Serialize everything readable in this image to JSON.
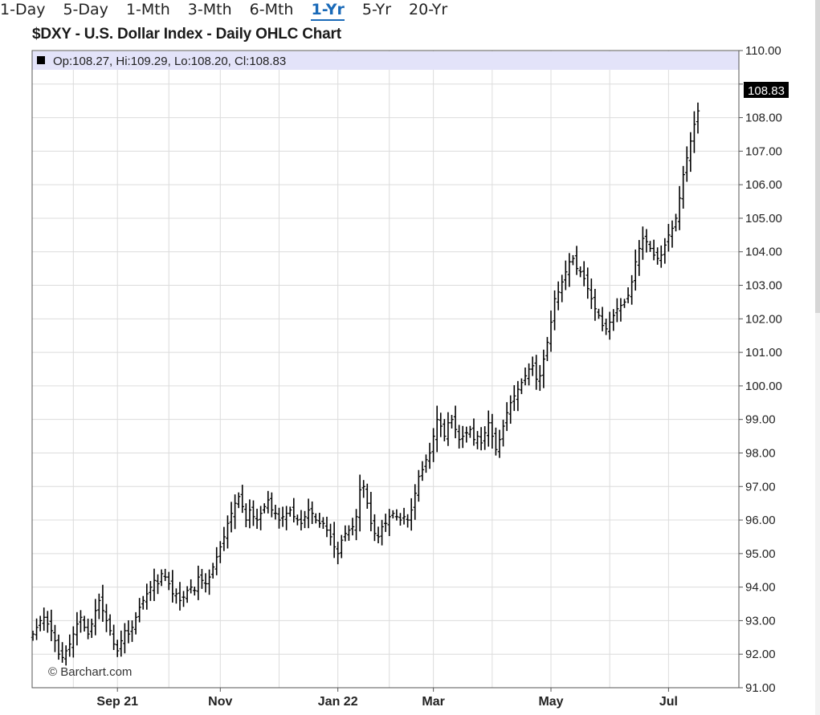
{
  "tabs": [
    {
      "label": "1-Day",
      "active": false
    },
    {
      "label": "5-Day",
      "active": false
    },
    {
      "label": "1-Mth",
      "active": false
    },
    {
      "label": "3-Mth",
      "active": false
    },
    {
      "label": "6-Mth",
      "active": false
    },
    {
      "label": "1-Yr",
      "active": true
    },
    {
      "label": "5-Yr",
      "active": false
    },
    {
      "label": "20-Yr",
      "active": false
    }
  ],
  "colors": {
    "accent": "#1a6ab8",
    "info_bar": "#e3e3f9",
    "bars": "#000000",
    "grid": "#d8d8d8"
  },
  "chart_data": {
    "type": "ohlc",
    "title": "$DXY - U.S. Dollar Index - Daily OHLC Chart",
    "info_bar": "Op:108.27, Hi:109.29, Lo:108.20, Cl:108.83",
    "last_price": "108.83",
    "watermark": "© Barchart.com",
    "ylim": [
      91,
      110
    ],
    "y_ticks": [
      "91.00",
      "92.00",
      "93.00",
      "94.00",
      "95.00",
      "96.00",
      "97.00",
      "98.00",
      "99.00",
      "100.00",
      "101.00",
      "102.00",
      "103.00",
      "104.00",
      "105.00",
      "106.00",
      "107.00",
      "108.00",
      "109.00",
      "110.00"
    ],
    "x_ticks": [
      {
        "label": "Sep 21",
        "index": 23
      },
      {
        "label": "Nov",
        "index": 51
      },
      {
        "label": "Jan 22",
        "index": 83
      },
      {
        "label": "Mar",
        "index": 109
      },
      {
        "label": "May",
        "index": 141
      },
      {
        "label": "Jul",
        "index": 173
      }
    ],
    "bar_count": 182,
    "closes": [
      92.6,
      92.8,
      93.0,
      93.1,
      92.9,
      92.7,
      92.4,
      92.0,
      91.9,
      92.1,
      92.3,
      92.6,
      92.9,
      93.1,
      92.8,
      92.6,
      92.9,
      93.3,
      93.6,
      93.3,
      93.0,
      92.7,
      92.3,
      92.1,
      92.4,
      92.7,
      92.6,
      92.8,
      93.1,
      93.4,
      93.6,
      93.8,
      94.0,
      94.2,
      94.1,
      94.4,
      94.3,
      94.1,
      93.8,
      93.8,
      93.6,
      93.7,
      93.9,
      94.0,
      93.9,
      94.3,
      94.2,
      94.1,
      94.3,
      94.6,
      94.9,
      95.2,
      95.5,
      95.9,
      96.2,
      96.5,
      96.7,
      96.4,
      96.0,
      96.3,
      96.1,
      96.0,
      96.2,
      96.4,
      96.6,
      96.3,
      96.2,
      96.0,
      96.1,
      96.2,
      96.3,
      96.1,
      96.0,
      95.9,
      96.1,
      96.3,
      96.2,
      96.0,
      95.9,
      95.9,
      95.7,
      95.5,
      95.2,
      95.0,
      95.4,
      95.6,
      95.7,
      95.8,
      96.1,
      96.9,
      97.0,
      96.5,
      95.9,
      95.6,
      95.5,
      95.8,
      95.9,
      96.1,
      96.2,
      96.1,
      96.0,
      96.1,
      96.0,
      96.3,
      96.8,
      97.3,
      97.5,
      97.8,
      98.0,
      98.5,
      99.0,
      98.8,
      98.5,
      98.9,
      99.0,
      98.7,
      98.4,
      98.5,
      98.6,
      98.7,
      98.4,
      98.5,
      98.3,
      98.6,
      98.9,
      98.5,
      98.1,
      98.4,
      98.8,
      99.2,
      99.5,
      99.7,
      99.9,
      100.1,
      100.3,
      100.5,
      100.6,
      100.2,
      100.3,
      100.8,
      101.3,
      101.9,
      102.6,
      102.8,
      103.1,
      103.4,
      103.7,
      103.8,
      103.5,
      103.4,
      103.2,
      102.9,
      102.6,
      102.3,
      102.1,
      101.8,
      101.7,
      101.9,
      102.1,
      102.3,
      102.4,
      102.5,
      102.7,
      103.1,
      103.7,
      104.1,
      104.4,
      104.3,
      104.1,
      103.9,
      103.8,
      103.9,
      104.2,
      104.5,
      104.7,
      105.0,
      105.6,
      106.3,
      106.8,
      107.3,
      107.8,
      108.2,
      108.4,
      108.83
    ]
  }
}
